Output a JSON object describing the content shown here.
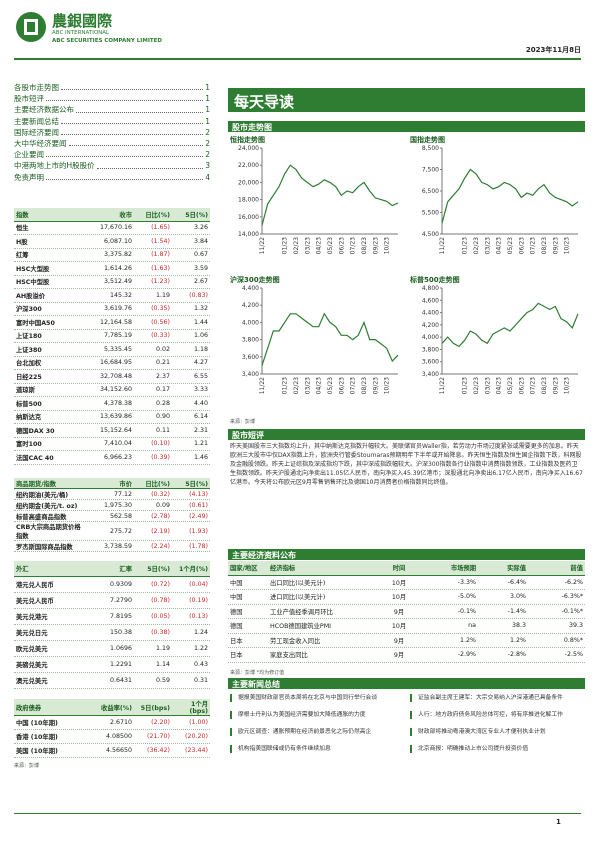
{
  "header": {
    "logo": "農銀國際",
    "company_en": "ABC INTERNATIONAL",
    "company_full": "ABC SECURITIES COMPANY LIMITED",
    "date": "2023年11月8日"
  },
  "toc": [
    {
      "title": "各股市走势图",
      "page": "1"
    },
    {
      "title": "股市短评",
      "page": "1"
    },
    {
      "title": "主要经济数据公布",
      "page": "1"
    },
    {
      "title": "主要新闻总结",
      "page": "1"
    },
    {
      "title": "国际经济要闻",
      "page": "2"
    },
    {
      "title": "大中华经济要闻",
      "page": "2"
    },
    {
      "title": "企业要闻",
      "page": "2"
    },
    {
      "title": "中港两地上市的H股股价",
      "page": "3"
    },
    {
      "title": "免责声明",
      "page": "4"
    }
  ],
  "indices_table": {
    "headers": [
      "指数",
      "收市",
      "日比(%)",
      "5日(%)"
    ],
    "rows": [
      [
        "恒生",
        "17,670.16",
        "(1.65)",
        "3.26"
      ],
      [
        "H股",
        "6,087.10",
        "(1.54)",
        "3.84"
      ],
      [
        "红筹",
        "3,375.82",
        "(1.87)",
        "0.67"
      ],
      [
        "HSC大型股",
        "1,614.26",
        "(1.63)",
        "3.59"
      ],
      [
        "HSC中型股",
        "3,512.49",
        "(1.23)",
        "2.67"
      ],
      [
        "AH股溢价",
        "145.32",
        "1.19",
        "(0.83)"
      ],
      [
        "沪深300",
        "3,619.76",
        "(0.35)",
        "1.32"
      ],
      [
        "富时中国A50",
        "12,164.58",
        "(0.56)",
        "1.44"
      ],
      [
        "上证180",
        "7,785.19",
        "(0.33)",
        "1.06"
      ],
      [
        "上证380",
        "5,335.45",
        "0.02",
        "1.18"
      ],
      [
        "台北加权",
        "16,684.95",
        "0.21",
        "4.27"
      ],
      [
        "日经225",
        "32,708.48",
        "2.37",
        "6.55"
      ],
      [
        "道琼斯",
        "34,152.60",
        "0.17",
        "3.33"
      ],
      [
        "标普500",
        "4,378.38",
        "0.28",
        "4.40"
      ],
      [
        "纳斯达克",
        "13,639.86",
        "0.90",
        "6.14"
      ],
      [
        "德国DAX 30",
        "15,152.64",
        "0.11",
        "2.31"
      ],
      [
        "富时100",
        "7,410.04",
        "(0.10)",
        "1.21"
      ],
      [
        "法国CAC 40",
        "6,966.23",
        "(0.39)",
        "1.46"
      ]
    ]
  },
  "commodities_table": {
    "headers": [
      "商品期货/指数",
      "市价",
      "日比(%)",
      "5日(%)"
    ],
    "rows": [
      [
        "纽约期油(美元/桶)",
        "77.12",
        "(0.32)",
        "(4.13)"
      ],
      [
        "纽约期金(美元/t. oz)",
        "1,975.30",
        "0.09",
        "(0.61)"
      ],
      [
        "标普高盛商品指数",
        "562.58",
        "(2.78)",
        "(2.49)"
      ],
      [
        "CRB大宗商品期货价格指数",
        "275.72",
        "(2.19)",
        "(1.93)"
      ],
      [
        "罗杰斯国际商品指数",
        "3,738.59",
        "(2.24)",
        "(1.78)"
      ]
    ]
  },
  "fx_table": {
    "headers": [
      "外汇",
      "汇率",
      "5日(%)",
      "1个月(%)"
    ],
    "rows": [
      [
        "港元兑人民币",
        "0.9309",
        "(0.72)",
        "(0.04)"
      ],
      [
        "美元兑人民币",
        "7.2790",
        "(0.78)",
        "(0.19)"
      ],
      [
        "美元兑港元",
        "7.8195",
        "(0.05)",
        "(0.13)"
      ],
      [
        "美元兑日元",
        "150.38",
        "(0.38)",
        "1.24"
      ],
      [
        "欧元兑美元",
        "1.0696",
        "1.19",
        "1.22"
      ],
      [
        "英磅兑美元",
        "1.2291",
        "1.14",
        "0.43"
      ],
      [
        "澳元兑美元",
        "0.6431",
        "0.59",
        "0.31"
      ]
    ]
  },
  "bonds_table": {
    "headers": [
      "政府债券",
      "收益率(%)",
      "5日(bps)",
      "1个月(bps)"
    ],
    "rows": [
      [
        "中国 (10年期)",
        "2.6710",
        "(2.20)",
        "(1.00)"
      ],
      [
        "香港 (10年期)",
        "4.08500",
        "(21.70)",
        "(20.20)"
      ],
      [
        "美国 (10年期)",
        "4.56650",
        "(36.42)",
        "(23.44)"
      ]
    ]
  },
  "left_source": "来源：彭博",
  "banner": "每天导读",
  "charts_section": "股市走势图",
  "charts": [
    {
      "type": "line",
      "title": "恒指走势图",
      "color": "#2e7d32",
      "categories": [
        "11/22",
        null,
        null,
        null,
        "01/23",
        null,
        "02/23",
        null,
        "03/23",
        null,
        "04/23",
        null,
        "05/23",
        null,
        "06/23",
        null,
        "07/23",
        null,
        "08/23",
        null,
        "09/23",
        null,
        "10/23",
        null,
        null
      ],
      "values": [
        15000,
        17500,
        18500,
        19500,
        21000,
        22000,
        21500,
        20500,
        20000,
        19500,
        19800,
        20300,
        20000,
        19500,
        18500,
        19000,
        18800,
        19500,
        20000,
        19000,
        18200,
        18000,
        17800,
        17300,
        17600
      ],
      "ylim": [
        14000,
        24000
      ],
      "yticks": [
        {
          "value": 14000,
          "label": "14,000"
        },
        {
          "value": 16000,
          "label": "16,000"
        },
        {
          "value": 18000,
          "label": "18,000"
        },
        {
          "value": 20000,
          "label": "20,000"
        },
        {
          "value": 22000,
          "label": "22,000"
        },
        {
          "value": 24000,
          "label": "24,000"
        }
      ]
    },
    {
      "type": "line",
      "title": "国指走势图",
      "color": "#2e7d32",
      "categories": [
        "11/22",
        null,
        null,
        null,
        "01/23",
        null,
        "02/23",
        null,
        "03/23",
        null,
        "04/23",
        null,
        "05/23",
        null,
        "06/23",
        null,
        "07/23",
        null,
        "08/23",
        null,
        "09/23",
        null,
        "10/23",
        null,
        null
      ],
      "values": [
        5000,
        6000,
        6300,
        6600,
        7100,
        7500,
        7300,
        6900,
        6800,
        6600,
        6700,
        6900,
        6800,
        6600,
        6200,
        6400,
        6300,
        6600,
        6800,
        6400,
        6200,
        6100,
        6000,
        5800,
        6000
      ],
      "ylim": [
        4500,
        8500
      ],
      "yticks": [
        {
          "value": 4500,
          "label": "4,500"
        },
        {
          "value": 5500,
          "label": "5,500"
        },
        {
          "value": 6500,
          "label": "6,500"
        },
        {
          "value": 7500,
          "label": "7,500"
        },
        {
          "value": 8500,
          "label": "8,500"
        }
      ]
    },
    {
      "type": "line",
      "title": "沪深300走势图",
      "color": "#2e7d32",
      "categories": [
        "11/22",
        null,
        null,
        null,
        "01/23",
        null,
        "02/23",
        null,
        "03/23",
        null,
        "04/23",
        null,
        "05/23",
        null,
        "06/23",
        null,
        "07/23",
        null,
        "08/23",
        null,
        "09/23",
        null,
        "10/23",
        null,
        null
      ],
      "values": [
        3500,
        3700,
        3900,
        3900,
        4000,
        4100,
        4100,
        4050,
        4000,
        3950,
        3950,
        4100,
        4000,
        3950,
        3850,
        3850,
        3800,
        3850,
        4000,
        3800,
        3800,
        3750,
        3700,
        3550,
        3620
      ],
      "ylim": [
        3400,
        4400
      ],
      "yticks": [
        {
          "value": 3400,
          "label": "3,400"
        },
        {
          "value": 3600,
          "label": "3,600"
        },
        {
          "value": 3800,
          "label": "3,800"
        },
        {
          "value": 4000,
          "label": "4,000"
        },
        {
          "value": 4200,
          "label": "4,200"
        },
        {
          "value": 4400,
          "label": "4,400"
        }
      ]
    },
    {
      "type": "line",
      "title": "标普500走势图",
      "color": "#2e7d32",
      "categories": [
        "11/22",
        null,
        null,
        null,
        "01/23",
        null,
        "02/23",
        null,
        "03/23",
        null,
        "04/23",
        null,
        "05/23",
        null,
        "06/23",
        null,
        "07/23",
        null,
        "08/23",
        null,
        "09/23",
        null,
        "10/23",
        null,
        null
      ],
      "values": [
        3900,
        4000,
        3900,
        3850,
        3950,
        4100,
        4050,
        3950,
        3900,
        4050,
        4100,
        4150,
        4100,
        4200,
        4300,
        4400,
        4450,
        4550,
        4500,
        4450,
        4500,
        4300,
        4250,
        4150,
        4380
      ],
      "ylim": [
        3400,
        4800
      ],
      "yticks": [
        {
          "value": 3400,
          "label": "3,400"
        },
        {
          "value": 3600,
          "label": "3,600"
        },
        {
          "value": 3800,
          "label": "3,800"
        },
        {
          "value": 4000,
          "label": "4,000"
        },
        {
          "value": 4200,
          "label": "4,200"
        },
        {
          "value": 4400,
          "label": "4,400"
        },
        {
          "value": 4600,
          "label": "4,600"
        },
        {
          "value": 4800,
          "label": "4,800"
        }
      ]
    }
  ],
  "charts_source": "来源：彭博",
  "commentary": {
    "title": "股市短评",
    "text": "昨天美国股市三大指数均上升，其中纳斯达克指数升幅较大。美联储官员Waller指，若劳动力市场过度紧张或需要更多的加息。昨天欧洲三大股市中仅DAX指数上升，欧洲央行管委Stournaras预期明年下半年或开始降息。昨天恒生指数及恒生国企指数下跌，科网股及金融股领跌。昨天上证综指及深成指均下跌，其中深成指跌幅较大。沪深300指数各行业指数中消费指数领跌，工业指数及医药卫生指数领跌。昨天沪股通北向净卖出11.05亿人民币，南向净买入45.39亿港币；深股通北向净卖出6.17亿人民币，南向净买入16.67亿港币。今天将公布欧元区9月零售销售环比及德国10月消费者价格指数同比终值。"
  },
  "econ": {
    "title": "主要经济资料公布",
    "headers": [
      "国家/地区",
      "经济指标",
      "时间",
      "市场预期",
      "实际值",
      "前值"
    ],
    "rows": [
      [
        "中国",
        "出口同比(以美元计)",
        "10月",
        "-3.3%",
        "-6.4%",
        "-6.2%"
      ],
      [
        "中国",
        "进口同比(以美元计)",
        "10月",
        "-5.0%",
        "3.0%",
        "-6.3%*"
      ],
      [
        "德国",
        "工业产值经季调月环比",
        "9月",
        "-0.1%",
        "-1.4%",
        "-0.1%*"
      ],
      [
        "德国",
        "HCOB德国建筑业PMI",
        "10月",
        "na",
        "38.3",
        "39.3"
      ],
      [
        "日本",
        "劳工现金收入同比",
        "9月",
        "1.2%",
        "1.2%",
        "0.8%*"
      ],
      [
        "日本",
        "家庭支出同比",
        "9月",
        "-2.9%",
        "-2.8%",
        "-2.5%"
      ]
    ],
    "note": "来源：彭博 *均为修订值"
  },
  "news": {
    "title": "主要新闻总结",
    "left": [
      "据报美国财政部官员本周将在北京与中国同行举行会谈",
      "摩根士丹利认为美国经济需要加大降低通胀的力度",
      "欧元区调查：通胀预期在经济前景恶化之际仍然高企",
      "机构指美国联储或仍有条件继续加息"
    ],
    "right": [
      "证监会副主席王建军：大宗交易纳入沪深港通已具备条件",
      "人行：地方政府债务风险总体可控，将有序推进化解工作",
      "财政部将推动粤港澳大湾区专业人才便利执业计划",
      "北京商报：明确推动上市公司提升投资价值"
    ]
  },
  "page_number": "1"
}
